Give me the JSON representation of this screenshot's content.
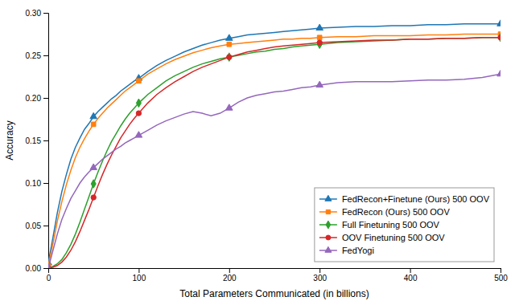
{
  "chart_data": {
    "type": "line",
    "xlabel": "Total Parameters Communicated (in billions)",
    "ylabel": "Accuracy",
    "xlim": [
      0,
      500
    ],
    "ylim": [
      0.0,
      0.3
    ],
    "xticks": [
      0,
      100,
      200,
      300,
      400,
      500
    ],
    "yticks": [
      {
        "value": 0.0,
        "label": "0.00"
      },
      {
        "value": 0.05,
        "label": "0.05"
      },
      {
        "value": 0.1,
        "label": "0.10"
      },
      {
        "value": 0.15,
        "label": "0.15"
      },
      {
        "value": 0.2,
        "label": "0.20"
      },
      {
        "value": 0.25,
        "label": "0.25"
      },
      {
        "value": 0.3,
        "label": "0.30"
      }
    ],
    "grid": false,
    "legend": "lower right",
    "x": [
      0,
      5,
      10,
      15,
      20,
      25,
      30,
      35,
      40,
      45,
      50,
      55,
      60,
      65,
      70,
      75,
      80,
      85,
      90,
      95,
      100,
      110,
      120,
      130,
      140,
      150,
      160,
      170,
      180,
      190,
      200,
      210,
      220,
      230,
      240,
      250,
      260,
      270,
      280,
      290,
      300,
      320,
      340,
      360,
      380,
      400,
      420,
      440,
      460,
      480,
      500
    ],
    "series": [
      {
        "name": "FedRecon+Finetune (Ours) 500 OOV",
        "color": "#1f77b4",
        "marker": "triangle-up",
        "values": [
          0.006,
          0.035,
          0.065,
          0.09,
          0.11,
          0.128,
          0.142,
          0.153,
          0.163,
          0.17,
          0.178,
          0.184,
          0.189,
          0.194,
          0.199,
          0.203,
          0.208,
          0.212,
          0.216,
          0.22,
          0.223,
          0.231,
          0.238,
          0.244,
          0.249,
          0.254,
          0.258,
          0.262,
          0.265,
          0.268,
          0.27,
          0.272,
          0.274,
          0.275,
          0.276,
          0.277,
          0.278,
          0.279,
          0.28,
          0.281,
          0.282,
          0.283,
          0.284,
          0.284,
          0.285,
          0.285,
          0.286,
          0.286,
          0.287,
          0.287,
          0.287
        ]
      },
      {
        "name": "FedRecon (Ours) 500 OOV",
        "color": "#ff7f0e",
        "marker": "square",
        "values": [
          0.003,
          0.028,
          0.055,
          0.078,
          0.098,
          0.115,
          0.13,
          0.142,
          0.152,
          0.161,
          0.169,
          0.176,
          0.182,
          0.188,
          0.193,
          0.198,
          0.203,
          0.208,
          0.212,
          0.216,
          0.22,
          0.228,
          0.234,
          0.24,
          0.245,
          0.249,
          0.253,
          0.256,
          0.259,
          0.261,
          0.263,
          0.264,
          0.265,
          0.266,
          0.267,
          0.268,
          0.269,
          0.269,
          0.27,
          0.27,
          0.271,
          0.272,
          0.272,
          0.273,
          0.273,
          0.273,
          0.274,
          0.274,
          0.275,
          0.275,
          0.275
        ]
      },
      {
        "name": "Full Finetuning 500 OOV",
        "color": "#2ca02c",
        "marker": "diamond",
        "values": [
          0.0,
          0.002,
          0.005,
          0.01,
          0.018,
          0.028,
          0.04,
          0.054,
          0.069,
          0.084,
          0.099,
          0.113,
          0.126,
          0.138,
          0.149,
          0.158,
          0.167,
          0.175,
          0.182,
          0.188,
          0.194,
          0.204,
          0.212,
          0.22,
          0.226,
          0.231,
          0.236,
          0.24,
          0.243,
          0.246,
          0.248,
          0.25,
          0.252,
          0.254,
          0.255,
          0.257,
          0.258,
          0.26,
          0.261,
          0.262,
          0.263,
          0.265,
          0.266,
          0.267,
          0.268,
          0.269,
          0.269,
          0.27,
          0.27,
          0.271,
          0.271
        ]
      },
      {
        "name": "OOV Finetuning 500 OOV",
        "color": "#d62728",
        "marker": "circle",
        "values": [
          0.0,
          0.001,
          0.003,
          0.007,
          0.013,
          0.021,
          0.031,
          0.043,
          0.056,
          0.069,
          0.083,
          0.097,
          0.11,
          0.122,
          0.133,
          0.143,
          0.153,
          0.161,
          0.169,
          0.176,
          0.182,
          0.194,
          0.204,
          0.212,
          0.219,
          0.225,
          0.231,
          0.236,
          0.24,
          0.244,
          0.248,
          0.251,
          0.254,
          0.256,
          0.258,
          0.26,
          0.261,
          0.262,
          0.263,
          0.264,
          0.265,
          0.266,
          0.267,
          0.268,
          0.268,
          0.269,
          0.269,
          0.27,
          0.27,
          0.271,
          0.271
        ]
      },
      {
        "name": "FedYogi",
        "color": "#9467bd",
        "marker": "triangle-up",
        "values": [
          0.0,
          0.02,
          0.04,
          0.057,
          0.07,
          0.082,
          0.091,
          0.1,
          0.107,
          0.113,
          0.118,
          0.123,
          0.128,
          0.132,
          0.136,
          0.14,
          0.143,
          0.147,
          0.15,
          0.153,
          0.156,
          0.162,
          0.168,
          0.173,
          0.177,
          0.181,
          0.184,
          0.182,
          0.179,
          0.182,
          0.188,
          0.195,
          0.2,
          0.203,
          0.205,
          0.207,
          0.208,
          0.21,
          0.212,
          0.213,
          0.215,
          0.218,
          0.219,
          0.219,
          0.219,
          0.22,
          0.221,
          0.221,
          0.222,
          0.224,
          0.228
        ]
      }
    ]
  }
}
